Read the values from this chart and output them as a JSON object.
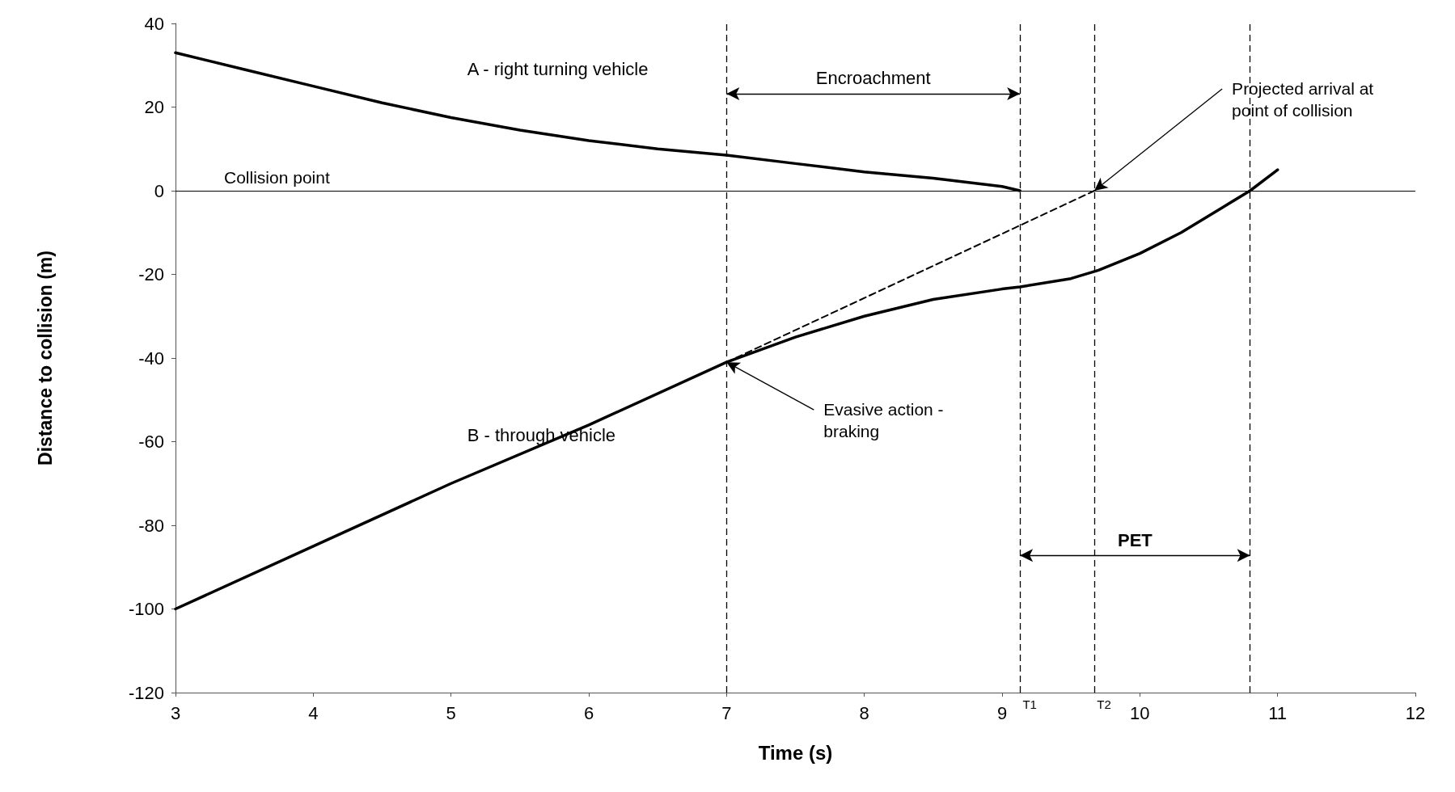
{
  "chart_data": {
    "type": "line",
    "xlabel": "Time (s)",
    "ylabel": "Distance to collision (m)",
    "xlim": [
      3,
      12
    ],
    "xticks": [
      3,
      4,
      5,
      6,
      7,
      8,
      9,
      10,
      11,
      12
    ],
    "ylim": [
      -120,
      40
    ],
    "yticks": [
      -120,
      -100,
      -80,
      -60,
      -40,
      -20,
      0,
      20,
      40
    ],
    "grid": false,
    "legend": false,
    "marker": "none",
    "series": [
      {
        "name": "A - right turning vehicle",
        "color": "#000000",
        "line_style": "solid",
        "x": [
          3,
          3.5,
          4,
          4.5,
          5,
          5.5,
          6,
          6.5,
          7,
          7.5,
          8,
          8.5,
          9,
          9.13
        ],
        "values": [
          33,
          29,
          25,
          21,
          17.5,
          14.5,
          12,
          10,
          8.5,
          6.5,
          4.5,
          3,
          1,
          0
        ]
      },
      {
        "name": "B - through vehicle",
        "color": "#000000",
        "line_style": "solid",
        "x": [
          3,
          4,
          5,
          6,
          7,
          7.5,
          8,
          8.5,
          9,
          9.13,
          9.5,
          9.7,
          10,
          10.3,
          10.6,
          10.8,
          11
        ],
        "values": [
          -100,
          -85,
          -70,
          -56,
          -41,
          -35,
          -30,
          -26,
          -23.5,
          -23,
          -21,
          -19,
          -15,
          -10,
          -4,
          0,
          5
        ]
      },
      {
        "color": "#000000",
        "line_style": "dashed",
        "x": [
          7,
          9.67
        ],
        "values": [
          -41,
          0
        ]
      }
    ],
    "ref_lines": [
      {
        "axis": "y",
        "value": 0,
        "label": "Collision point",
        "line_style": "solid"
      },
      {
        "axis": "x",
        "value": 7,
        "label": null,
        "line_style": "dashed"
      },
      {
        "axis": "x",
        "value": 9.13,
        "label": "T1",
        "line_style": "dashed"
      },
      {
        "axis": "x",
        "value": 9.67,
        "label": "T2",
        "line_style": "dashed"
      },
      {
        "axis": "x",
        "value": 10.8,
        "label": null,
        "line_style": "dashed"
      }
    ],
    "annotations": [
      "Encroachment",
      "PET",
      {
        "text": "Projected arrival at point of collision",
        "x": 9.67,
        "y": 0
      },
      {
        "text": "Evasive action - braking",
        "x": 7,
        "y": -41
      }
    ]
  }
}
